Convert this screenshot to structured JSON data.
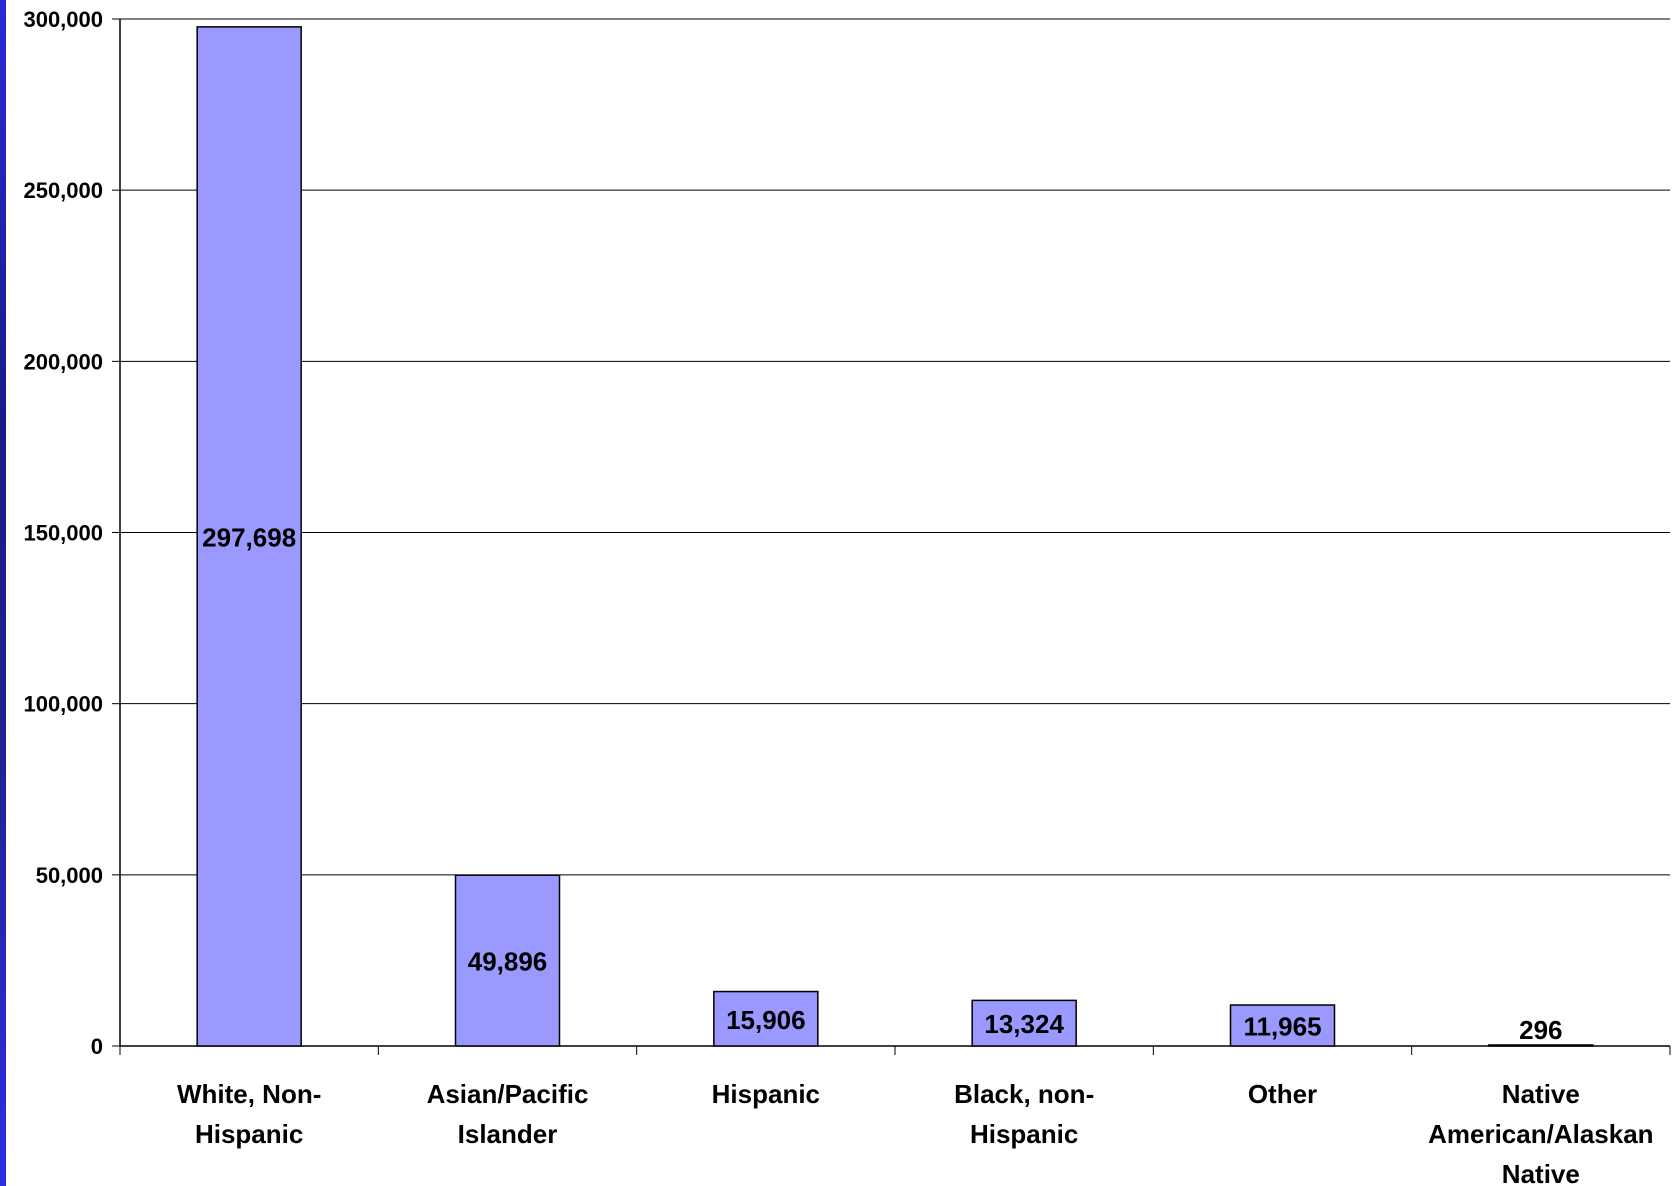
{
  "colors": {
    "bar_fill": "#9999ff",
    "bar_stroke": "#000000",
    "gridline": "#000000",
    "left_band": "#2323c8"
  },
  "chart_data": {
    "type": "bar",
    "title": "",
    "xlabel": "",
    "ylabel": "",
    "categories": [
      [
        "White, Non-",
        "Hispanic"
      ],
      [
        "Asian/Pacific",
        "Islander"
      ],
      [
        "Hispanic"
      ],
      [
        "Black, non-",
        "Hispanic"
      ],
      [
        "Other"
      ],
      [
        "Native",
        "American/Alaskan",
        "Native"
      ]
    ],
    "values": [
      297698,
      49896,
      15906,
      13324,
      11965,
      296
    ],
    "value_labels": [
      "297,698",
      "49,896",
      "15,906",
      "13,324",
      "11,965",
      "296"
    ],
    "ylim": [
      0,
      300000
    ],
    "yticks": [
      0,
      50000,
      100000,
      150000,
      200000,
      250000,
      300000
    ],
    "ytick_labels": [
      "0",
      "50,000",
      "100,000",
      "150,000",
      "200,000",
      "250,000",
      "300,000"
    ],
    "grid": true,
    "legend": "none"
  }
}
